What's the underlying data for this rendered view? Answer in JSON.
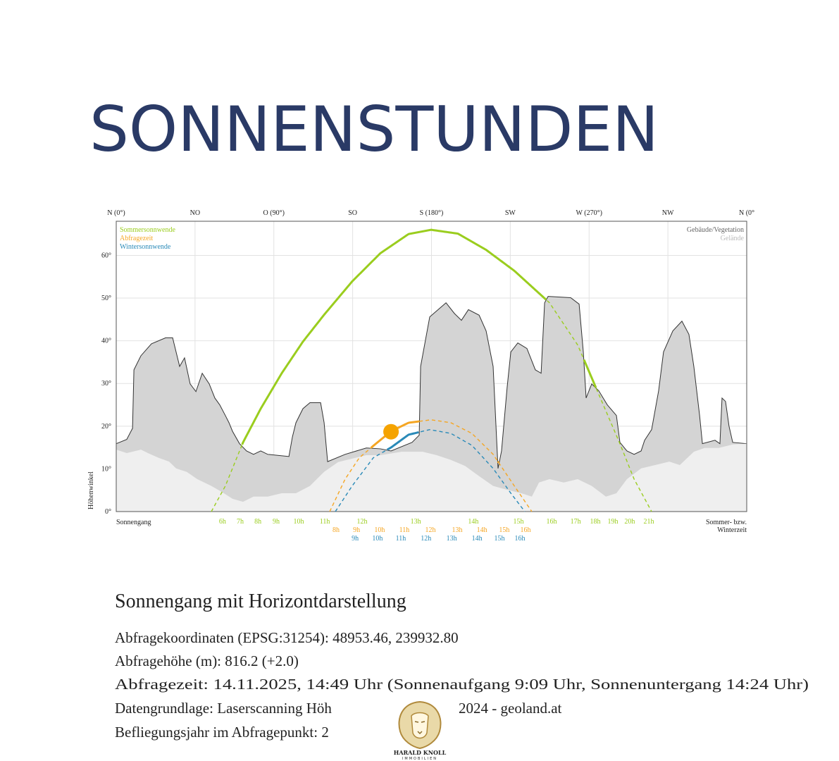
{
  "title": "SONNENSTUNDEN",
  "chart_data": {
    "type": "line",
    "y_axis_label": "Höhenwinkel",
    "left_label": "Sonnengang",
    "right_label": [
      "Sommer- bzw.",
      "Winterzeit"
    ],
    "xlim": [
      0,
      360
    ],
    "xticks": [
      {
        "value": 0,
        "label": "N (0°)"
      },
      {
        "value": 45,
        "label": "NO"
      },
      {
        "value": 90,
        "label": "O (90°)"
      },
      {
        "value": 135,
        "label": "SO"
      },
      {
        "value": 180,
        "label": "S (180°)"
      },
      {
        "value": 225,
        "label": "SW"
      },
      {
        "value": 270,
        "label": "W (270°)"
      },
      {
        "value": 315,
        "label": "NW"
      },
      {
        "value": 360,
        "label": "N (0°"
      }
    ],
    "ylim": [
      0,
      68
    ],
    "yticks": [
      {
        "value": 0,
        "label": "0°"
      },
      {
        "value": 10,
        "label": "10°"
      },
      {
        "value": 20,
        "label": "20°"
      },
      {
        "value": 30,
        "label": "30°"
      },
      {
        "value": 40,
        "label": "40°"
      },
      {
        "value": 50,
        "label": "50°"
      },
      {
        "value": 60,
        "label": "60°"
      }
    ],
    "grid": true,
    "series": [
      {
        "name": "Sommersonnwende",
        "color": "#9acd1e",
        "x": [
          54.3,
          62.3,
          72.4,
          82.5,
          94.5,
          106.6,
          118.7,
          134.7,
          150.8,
          166.9,
          179.8,
          195.1,
          211.2,
          227.3,
          247.4,
          263.5,
          273.5,
          287.6,
          295.7,
          305.7
        ],
        "values": [
          0,
          6.0,
          16.2,
          24.1,
          32.4,
          39.8,
          46.1,
          53.9,
          60.5,
          65.0,
          66.0,
          65.1,
          61.3,
          56.4,
          48.9,
          39.0,
          29.4,
          15.9,
          7.6,
          0
        ],
        "hours": {
          "x": [
            60.7,
            70.8,
            80.9,
            91.3,
            104.2,
            119.1,
            140.4,
            171.0,
            203.9,
            229.7,
            248.6,
            262.3,
            273.5,
            283.6,
            293.2,
            304.1
          ],
          "labels": [
            "6h",
            "7h",
            "8h",
            "9h",
            "10h",
            "11h",
            "12h",
            "13h",
            "14h",
            "15h",
            "16h",
            "17h",
            "18h",
            "19h",
            "20h",
            "21h"
          ]
        }
      },
      {
        "name": "Abfragezeit",
        "color": "#f5a623",
        "x": [
          121.9,
          130.7,
          138.8,
          146.8,
          156.9,
          166.9,
          179.8,
          191.1,
          203.1,
          215.2,
          227.3,
          237.3
        ],
        "values": [
          0,
          7.6,
          12.6,
          15.4,
          18.8,
          20.8,
          21.5,
          20.8,
          18.3,
          13.4,
          6.0,
          0
        ],
        "hours": {
          "x": [
            125.5,
            137.2,
            150.4,
            164.5,
            179.4,
            194.7,
            208.8,
            221.6,
            233.7
          ],
          "labels": [
            "8h",
            "9h",
            "10h",
            "11h",
            "12h",
            "13h",
            "14h",
            "15h",
            "16h"
          ]
        }
      },
      {
        "name": "Wintersonnwende",
        "color": "#2a8ab8",
        "x": [
          125.1,
          134.7,
          146.8,
          156.9,
          166.9,
          179.0,
          191.1,
          203.1,
          215.2,
          225.3,
          233.3
        ],
        "values": [
          0,
          6.0,
          12.6,
          15.0,
          18.0,
          19.2,
          18.3,
          15.5,
          10.1,
          4.3,
          0
        ],
        "hours": {
          "x": [
            136.4,
            149.2,
            162.5,
            176.9,
            191.5,
            206.0,
            218.8,
            230.5
          ],
          "labels": [
            "9h",
            "10h",
            "11h",
            "12h",
            "13h",
            "14h",
            "15h",
            "16h"
          ]
        }
      }
    ],
    "sun_position": {
      "x": 156.9,
      "value": 18.7,
      "color": "#f5a300"
    },
    "horizon": [
      {
        "name": "Gebäude/Vegetation",
        "color": "#d4d4d4",
        "label_color": "#666666",
        "x": [
          0,
          6.0,
          9.3,
          10.1,
          14.1,
          20.1,
          28.2,
          32.2,
          36.2,
          39.0,
          42.2,
          45.5,
          49.1,
          53.1,
          56.3,
          59.1,
          62.3,
          64.4,
          66.4,
          70.4,
          74.4,
          78.4,
          82.5,
          86.5,
          98.6,
          100.6,
          102.6,
          106.6,
          110.6,
          116.7,
          118.7,
          120.7,
          130.7,
          142.8,
          150.8,
          156.9,
          168.9,
          173.0,
          173.8,
          179.0,
          188.3,
          193.1,
          197.1,
          201.1,
          207.2,
          211.2,
          215.2,
          218.0,
          220.0,
          223.2,
          225.3,
          229.3,
          234.5,
          239.3,
          242.6,
          244.6,
          246.6,
          259.5,
          264.3,
          266.7,
          268.3,
          271.5,
          275.5,
          280.4,
          285.6,
          287.6,
          291.6,
          295.7,
          299.7,
          301.7,
          305.7,
          309.7,
          312.5,
          317.8,
          323.0,
          327.0,
          329.8,
          333.1,
          334.7,
          341.9,
          344.7,
          345.9,
          347.9,
          349.9,
          352.0,
          360
        ],
        "values": [
          15.9,
          16.9,
          19.5,
          33.2,
          36.5,
          39.3,
          40.7,
          40.7,
          34.0,
          36.0,
          29.9,
          28.1,
          32.4,
          29.9,
          26.6,
          25.0,
          22.5,
          20.8,
          18.8,
          15.9,
          14.2,
          13.4,
          14.2,
          13.4,
          12.9,
          17.5,
          20.8,
          24.1,
          25.5,
          25.5,
          20.8,
          11.7,
          13.4,
          14.9,
          14.7,
          14.2,
          16.2,
          17.9,
          34.0,
          45.6,
          48.9,
          46.4,
          44.8,
          47.3,
          46.0,
          42.3,
          34.0,
          10.1,
          14.2,
          29.1,
          37.4,
          39.5,
          38.2,
          33.2,
          32.4,
          48.9,
          50.4,
          50.1,
          48.6,
          37.4,
          26.6,
          29.9,
          28.3,
          25.0,
          22.5,
          16.2,
          14.2,
          13.4,
          14.2,
          16.7,
          19.2,
          28.3,
          37.4,
          42.3,
          44.6,
          41.5,
          34.0,
          22.5,
          15.9,
          16.7,
          15.9,
          26.6,
          25.8,
          20.0,
          16.2,
          15.9
        ]
      },
      {
        "name": "Gelände",
        "color": "#efefef",
        "label_color": "#bbbbbb",
        "x": [
          0,
          6.0,
          14.1,
          18.1,
          24.1,
          30.2,
          34.2,
          40.2,
          46.3,
          54.3,
          60.3,
          66.4,
          72.4,
          78.4,
          86.5,
          94.5,
          102.6,
          110.6,
          118.7,
          126.7,
          134.7,
          142.8,
          150.8,
          162.9,
          175.0,
          183.0,
          191.1,
          199.1,
          207.2,
          215.2,
          223.2,
          231.3,
          237.3,
          241.4,
          247.4,
          255.5,
          263.5,
          271.5,
          279.6,
          285.6,
          291.6,
          299.7,
          307.7,
          315.8,
          321.8,
          329.8,
          335.9,
          343.9,
          351.9,
          360
        ],
        "values": [
          14.5,
          13.7,
          14.5,
          13.7,
          12.6,
          11.7,
          10.1,
          9.3,
          7.6,
          6.0,
          4.6,
          3.0,
          2.3,
          3.5,
          3.5,
          4.3,
          4.3,
          6.0,
          9.3,
          11.6,
          12.4,
          13.2,
          13.2,
          14.0,
          14.0,
          13.2,
          12.1,
          10.7,
          8.3,
          6.0,
          5.1,
          4.3,
          3.5,
          6.8,
          7.6,
          6.8,
          7.6,
          6.0,
          3.5,
          4.3,
          7.6,
          10.1,
          10.9,
          11.7,
          10.9,
          14.0,
          14.9,
          14.9,
          15.7,
          15.9
        ]
      }
    ]
  },
  "info": {
    "heading": "Sonnengang mit Horizontdarstellung",
    "lines": [
      "Abfragekoordinaten (EPSG:31254): 48953.46, 239932.80",
      "Abfragehöhe (m): 816.2 (+2.0)",
      "Abfragezeit: 14.11.2025, 14:49 Uhr (Sonnenaufgang 9:09 Uhr,  Sonnenuntergang 14:24 Uhr)",
      [
        "Datengrundlage: Laserscanning Höh",
        "2024 - geoland.at"
      ],
      "Befliegungsjahr im Abfragepunkt: 2"
    ]
  },
  "logo": {
    "name": "HARALD KNOLL",
    "subtitle": "IMMOBILIEN"
  }
}
